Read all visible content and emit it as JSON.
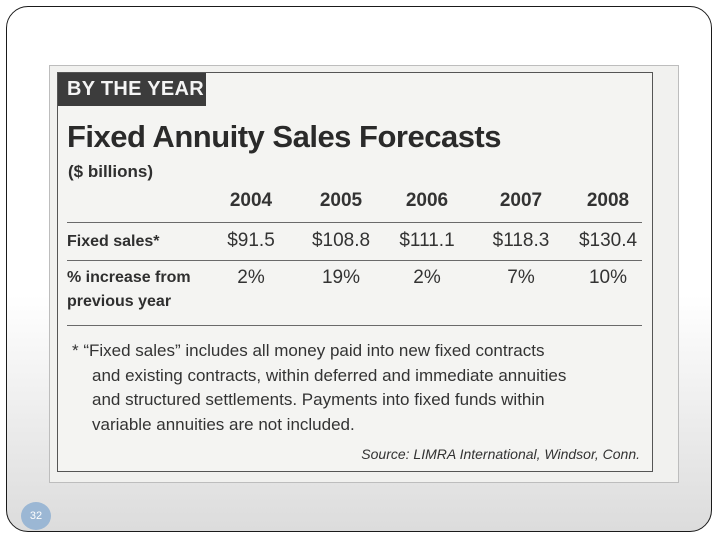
{
  "clipping": {
    "banner": "BY THE YEAR",
    "title": "Fixed Annuity Sales Forecasts",
    "units": "($ billions)",
    "years": [
      "2004",
      "2005",
      "2006",
      "2007",
      "2008"
    ],
    "rows": [
      {
        "label_lines": [
          "Fixed sales*"
        ],
        "values": [
          "$91.5",
          "$108.8",
          "$111.1",
          "$118.3",
          "$130.4"
        ]
      },
      {
        "label_lines": [
          "% increase from",
          "previous year"
        ],
        "values": [
          "2%",
          "19%",
          "2%",
          "7%",
          "10%"
        ]
      }
    ],
    "footnote_lines": [
      "* “Fixed sales” includes all money paid into new fixed contracts",
      "and existing contracts, within deferred and immediate annuities",
      "and structured settlements. Payments into fixed funds within",
      "variable annuities are not included."
    ],
    "source": "Source: LIMRA International, Windsor, Conn."
  },
  "slide": {
    "number": "32",
    "accent_color": "#9bb7d4"
  }
}
